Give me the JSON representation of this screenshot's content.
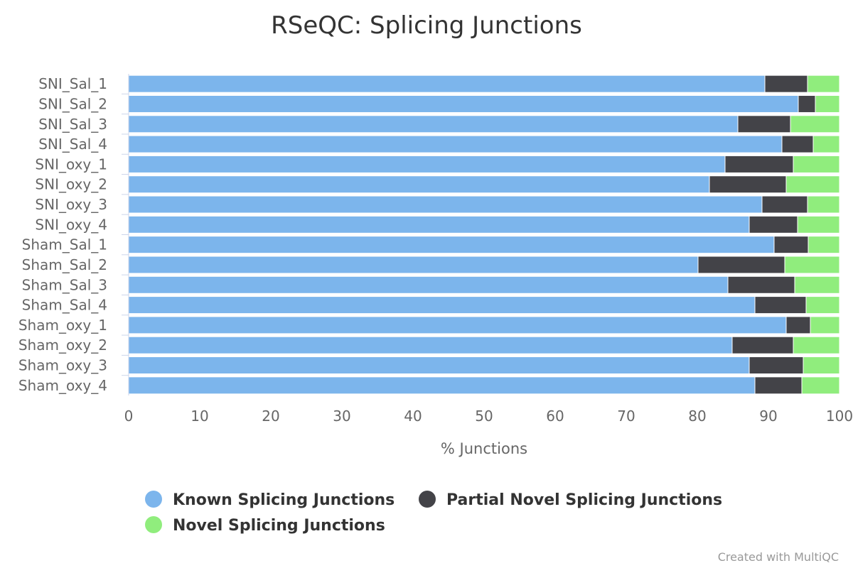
{
  "credit": "Created with MultiQC",
  "colors": {
    "known": "#7cb5ec",
    "partial": "#434348",
    "novel": "#90ed7d",
    "axis_line": "#ccd6eb",
    "grid": "#e6e6e6",
    "text": "#333333",
    "muted": "#666666"
  },
  "chart_data": {
    "type": "bar",
    "orientation": "horizontal",
    "stacking": "percent",
    "title": "RSeQC: Splicing Junctions",
    "xlabel": "% Junctions",
    "ylabel": "",
    "xlim": [
      0,
      100
    ],
    "xticks": [
      0,
      10,
      20,
      30,
      40,
      50,
      60,
      70,
      80,
      90,
      100
    ],
    "grid": false,
    "legend": "bottom",
    "categories": [
      "SNI_Sal_1",
      "SNI_Sal_2",
      "SNI_Sal_3",
      "SNI_Sal_4",
      "SNI_oxy_1",
      "SNI_oxy_2",
      "SNI_oxy_3",
      "SNI_oxy_4",
      "Sham_Sal_1",
      "Sham_Sal_2",
      "Sham_Sal_3",
      "Sham_Sal_4",
      "Sham_oxy_1",
      "Sham_oxy_2",
      "Sham_oxy_3",
      "Sham_oxy_4"
    ],
    "series": [
      {
        "name": "Known Splicing Junctions",
        "color": "#7cb5ec",
        "values": [
          89.5,
          94.2,
          85.7,
          91.9,
          83.9,
          81.7,
          89.1,
          87.3,
          90.8,
          80.1,
          84.3,
          88.1,
          92.5,
          84.9,
          87.3,
          88.1
        ]
      },
      {
        "name": "Partial Novel Splicing Junctions",
        "color": "#434348",
        "values": [
          6.0,
          2.4,
          7.4,
          4.4,
          9.6,
          10.8,
          6.4,
          6.8,
          4.8,
          12.2,
          9.4,
          7.2,
          3.4,
          8.6,
          7.6,
          6.6
        ]
      },
      {
        "name": "Novel Splicing Junctions",
        "color": "#90ed7d",
        "values": [
          4.5,
          3.4,
          6.9,
          3.7,
          6.5,
          7.5,
          4.5,
          5.9,
          4.4,
          7.7,
          6.3,
          4.7,
          4.1,
          6.5,
          5.1,
          5.3
        ]
      }
    ]
  }
}
